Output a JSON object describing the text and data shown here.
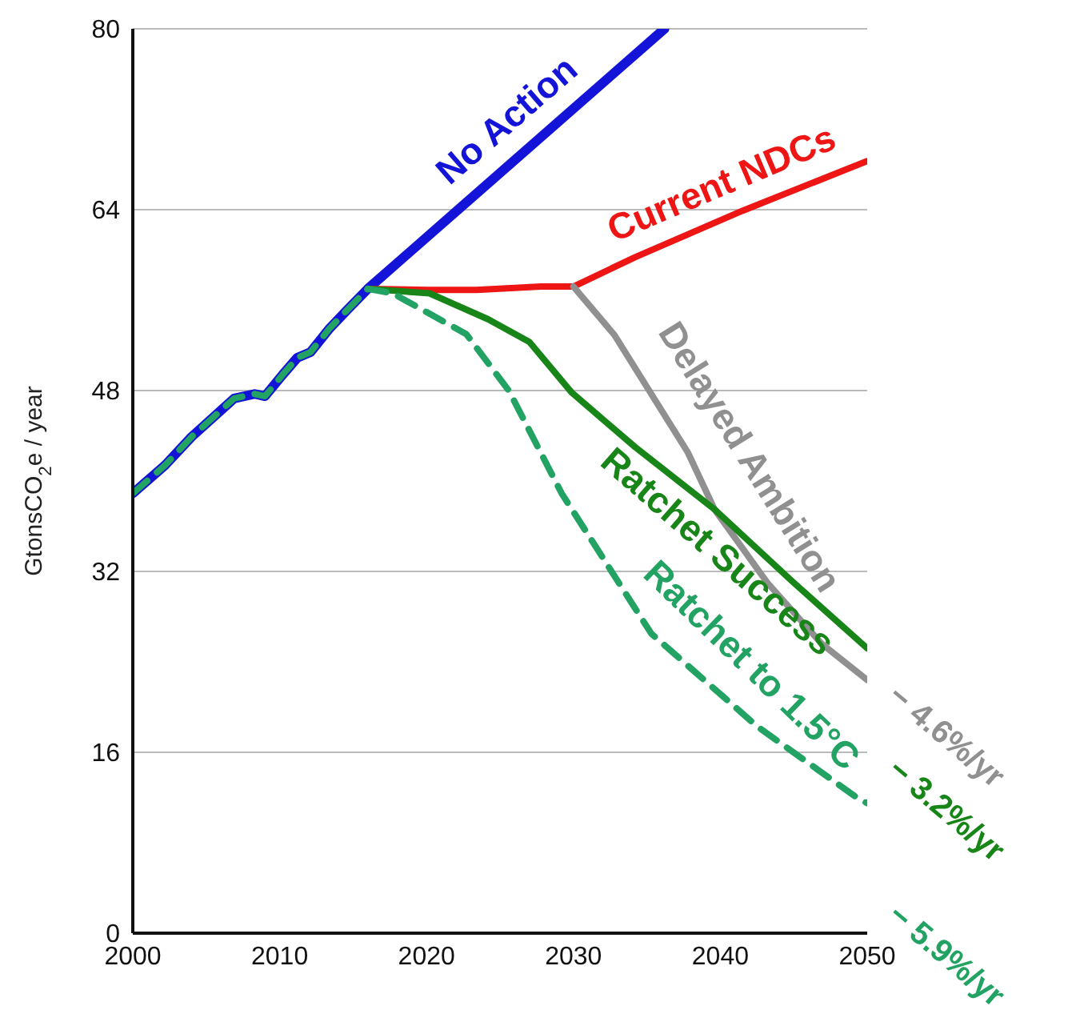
{
  "chart_data": {
    "type": "line",
    "ylabel": "GtonsCO$_{2}$e / year",
    "xlim": [
      2000,
      2050
    ],
    "xticks": [
      2000,
      2010,
      2020,
      2030,
      2040,
      2050
    ],
    "ylim": [
      0,
      80
    ],
    "yticks": [
      0,
      16,
      32,
      48,
      64,
      80
    ],
    "grid": "y",
    "marker": "none",
    "line_style": "solid",
    "series": [
      {
        "name": "No Action",
        "color": "#1414d8",
        "x": [
          2000,
          2002.2,
          2004,
          2006.9,
          2008.3,
          2009,
          2010.2,
          2011.2,
          2012.1,
          2013.4,
          2014.5,
          2016,
          2036.2
        ],
        "values": [
          38.9,
          41.4,
          43.9,
          47.3,
          47.7,
          47.5,
          49.4,
          50.9,
          51.4,
          53.5,
          55,
          57,
          80
        ]
      },
      {
        "name": "Current NDCs",
        "color": "#ee1515",
        "x": [
          2016,
          2020,
          2023.4,
          2027.8,
          2030,
          2034.2,
          2041.5,
          2050
        ],
        "values": [
          57,
          56.9,
          56.9,
          57.2,
          57.2,
          59.8,
          63.9,
          68.3
        ]
      },
      {
        "name": "Delayed Ambition",
        "color": "#909090",
        "x": [
          2030,
          2032.8,
          2037.8,
          2039.6,
          2043.2,
          2046.9,
          2050
        ],
        "values": [
          57.2,
          52.9,
          42.5,
          37.5,
          31,
          25.6,
          22.4
        ]
      },
      {
        "name": "Ratchet Success",
        "color": "#178517",
        "x": [
          2016,
          2020.2,
          2024.2,
          2027,
          2029.9,
          2034.2,
          2039.6,
          2045,
          2050
        ],
        "values": [
          57,
          56.6,
          54.3,
          52.3,
          47.8,
          43,
          37.5,
          31,
          25.2
        ]
      },
      {
        "name": "Ratchet to 1.5°C",
        "color": "#22a363",
        "line_style": "dashed",
        "x": [
          2000,
          2002.2,
          2004,
          2006.9,
          2008.3,
          2009,
          2010.2,
          2011.2,
          2012.1,
          2013.4,
          2014.5,
          2016,
          2017.7,
          2022.7,
          2025.6,
          2029.2,
          2035.3,
          2042.5,
          2049.4,
          2050
        ],
        "values": [
          38.9,
          41.4,
          43.9,
          47.3,
          47.7,
          47.5,
          49.4,
          50.9,
          51.4,
          53.5,
          55,
          57,
          56.6,
          53,
          48,
          38.9,
          26.5,
          18.3,
          11.9,
          11.5
        ]
      }
    ],
    "annotations": [
      "− 4.6%/yr",
      "− 3.2%/yr",
      "− 5.9%/yr"
    ]
  }
}
